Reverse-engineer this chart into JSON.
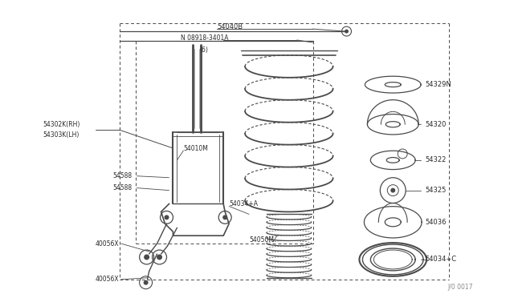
{
  "bg_color": "#ffffff",
  "line_color": "#4a4a4a",
  "text_color": "#2a2a2a",
  "fig_width": 6.4,
  "fig_height": 3.72,
  "dpi": 100,
  "watermark": "J/0 0017",
  "xlim": [
    0,
    640
  ],
  "ylim": [
    0,
    372
  ]
}
